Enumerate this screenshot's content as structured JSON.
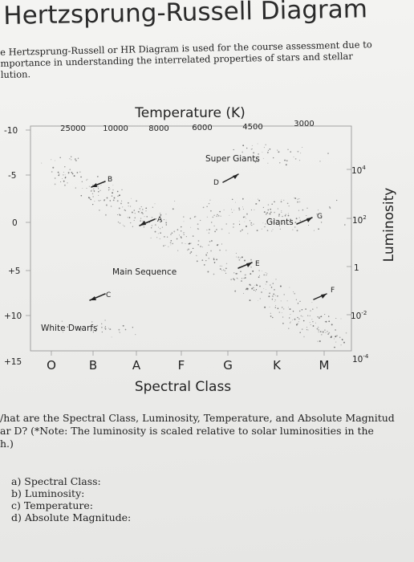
{
  "title": "Hertzsprung-Russell Diagram",
  "intro_lines": [
    "e Hertzsprung-Russell or HR Diagram is used for the course assessment due to",
    "mportance in understanding the interrelated properties of stars and stellar",
    "lution."
  ],
  "diagram": {
    "top_axis_title": "Temperature (K)",
    "temperature_ticks": [
      "25000",
      "10000",
      "8000",
      "6000",
      "4500",
      "3000"
    ],
    "magnitude_ticks": [
      "-10",
      "-5",
      "0",
      "+5",
      "+10",
      "+15"
    ],
    "luminosity_ticks": [
      {
        "base": "10",
        "exp": "4"
      },
      {
        "base": "10",
        "exp": "2"
      },
      {
        "base": "1",
        "exp": ""
      },
      {
        "base": "10",
        "exp": "-2"
      },
      {
        "base": "10",
        "exp": "-4"
      }
    ],
    "right_axis_title": "Luminosity",
    "spectral_classes": [
      "O",
      "B",
      "A",
      "F",
      "G",
      "K",
      "M"
    ],
    "bottom_axis_title": "Spectral Class",
    "regions": {
      "super_giants": "Super Giants",
      "giants": "Giants",
      "main_sequence": "Main Sequence",
      "white_dwarfs": "White Dwarfs"
    },
    "point_labels": [
      "A",
      "B",
      "C",
      "D",
      "E",
      "F",
      "G"
    ]
  },
  "question_lines": [
    "/hat are the Spectral Class, Luminosity, Temperature, and Absolute Magnitud",
    "ar D? (*Note: The luminosity is scaled relative to solar luminosities in the",
    "h.)"
  ],
  "answers": [
    "a) Spectral Class:",
    "b) Luminosity:",
    "c) Temperature:",
    "d) Absolute Magnitude:"
  ],
  "colors": {
    "frame": "#9a9a9a",
    "text": "#222222",
    "star": "#555555",
    "arrow": "#222222"
  }
}
